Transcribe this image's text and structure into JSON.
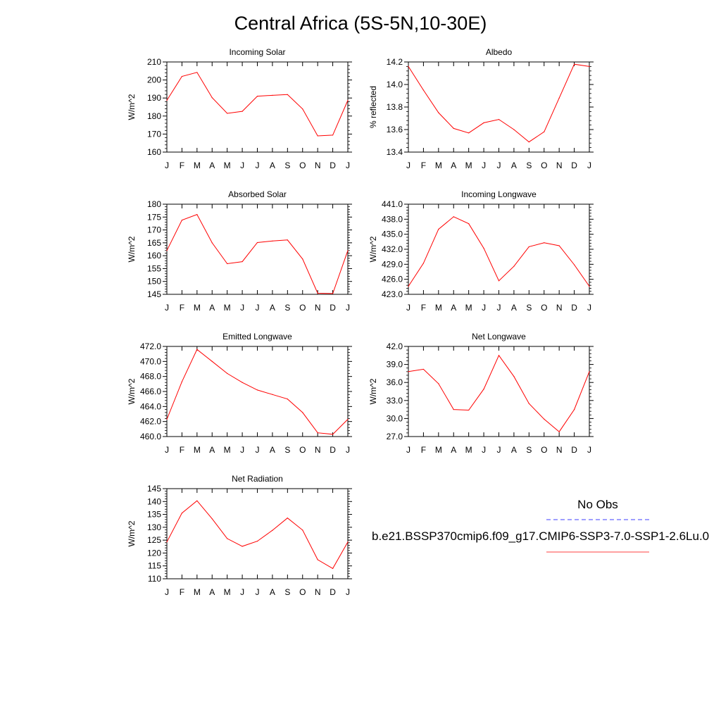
{
  "title": "Central Africa (5S-5N,10-30E)",
  "months": [
    "J",
    "F",
    "M",
    "A",
    "M",
    "J",
    "J",
    "A",
    "S",
    "O",
    "N",
    "D",
    "J"
  ],
  "colors": {
    "model": "#ff0000",
    "obs": "#0000ff",
    "axis": "#000000"
  },
  "legend": {
    "obs_label": "No Obs",
    "model_label": "b.e21.BSSP370cmip6.f09_g17.CMIP6-SSP3-7.0-SSP1-2.6Lu.0"
  },
  "chart_data": [
    {
      "type": "line",
      "title": "Incoming Solar",
      "ylabel": "W/m^2",
      "ylim": [
        160,
        210
      ],
      "yticks": [
        "160",
        "170",
        "180",
        "190",
        "200",
        "210"
      ],
      "x": [
        "J",
        "F",
        "M",
        "A",
        "M",
        "J",
        "J",
        "A",
        "S",
        "O",
        "N",
        "D",
        "J"
      ],
      "values": [
        188.7,
        202.0,
        204.2,
        190.2,
        181.5,
        182.6,
        191.0,
        191.5,
        191.9,
        183.9,
        169.0,
        169.4,
        188.7
      ]
    },
    {
      "type": "line",
      "title": "Albedo",
      "ylabel": "% reflected",
      "ylim": [
        13.4,
        14.2
      ],
      "yticks": [
        "13.4",
        "13.6",
        "13.8",
        "14.0",
        "14.2"
      ],
      "x": [
        "J",
        "F",
        "M",
        "A",
        "M",
        "J",
        "J",
        "A",
        "S",
        "O",
        "N",
        "D",
        "J"
      ],
      "values": [
        14.16,
        13.95,
        13.75,
        13.61,
        13.57,
        13.66,
        13.69,
        13.6,
        13.49,
        13.58,
        13.88,
        14.18,
        14.16
      ]
    },
    {
      "type": "line",
      "title": "Absorbed Solar",
      "ylabel": "W/m^2",
      "ylim": [
        145,
        180
      ],
      "yticks": [
        "145",
        "150",
        "155",
        "160",
        "165",
        "170",
        "175",
        "180"
      ],
      "x": [
        "J",
        "F",
        "M",
        "A",
        "M",
        "J",
        "J",
        "A",
        "S",
        "O",
        "N",
        "D",
        "J"
      ],
      "values": [
        162.0,
        173.8,
        176.0,
        165.0,
        156.9,
        157.7,
        165.1,
        165.7,
        166.1,
        158.7,
        145.4,
        145.3,
        162.0
      ]
    },
    {
      "type": "line",
      "title": "Incoming Longwave",
      "ylabel": "W/m^2",
      "ylim": [
        423.0,
        441.0
      ],
      "yticks": [
        "423.0",
        "426.0",
        "429.0",
        "432.0",
        "435.0",
        "438.0",
        "441.0"
      ],
      "x": [
        "J",
        "F",
        "M",
        "A",
        "M",
        "J",
        "J",
        "A",
        "S",
        "O",
        "N",
        "D",
        "J"
      ],
      "values": [
        424.6,
        429.2,
        436.0,
        438.5,
        437.1,
        432.2,
        425.7,
        428.6,
        432.5,
        433.3,
        432.7,
        428.9,
        424.6
      ]
    },
    {
      "type": "line",
      "title": "Emitted Longwave",
      "ylabel": "W/m^2",
      "ylim": [
        460.0,
        472.0
      ],
      "yticks": [
        "460.0",
        "462.0",
        "464.0",
        "466.0",
        "468.0",
        "470.0",
        "472.0"
      ],
      "x": [
        "J",
        "F",
        "M",
        "A",
        "M",
        "J",
        "J",
        "A",
        "S",
        "O",
        "N",
        "D",
        "J"
      ],
      "values": [
        462.3,
        467.3,
        471.6,
        470.0,
        468.4,
        467.2,
        466.2,
        465.6,
        465.0,
        463.2,
        460.5,
        460.3,
        462.3
      ]
    },
    {
      "type": "line",
      "title": "Net Longwave",
      "ylabel": "W/m^2",
      "ylim": [
        27.0,
        42.0
      ],
      "yticks": [
        "27.0",
        "30.0",
        "33.0",
        "36.0",
        "39.0",
        "42.0"
      ],
      "x": [
        "J",
        "F",
        "M",
        "A",
        "M",
        "J",
        "J",
        "A",
        "S",
        "O",
        "N",
        "D",
        "J"
      ],
      "values": [
        37.8,
        38.2,
        35.8,
        31.5,
        31.4,
        34.9,
        40.5,
        37.0,
        32.5,
        29.9,
        27.8,
        31.5,
        37.8
      ]
    },
    {
      "type": "line",
      "title": "Net Radiation",
      "ylabel": "W/m^2",
      "ylim": [
        110,
        145
      ],
      "yticks": [
        "110",
        "115",
        "120",
        "125",
        "130",
        "135",
        "140",
        "145"
      ],
      "x": [
        "J",
        "F",
        "M",
        "A",
        "M",
        "J",
        "J",
        "A",
        "S",
        "O",
        "N",
        "D",
        "J"
      ],
      "values": [
        124.3,
        135.5,
        140.3,
        133.3,
        125.6,
        122.6,
        124.6,
        128.8,
        133.6,
        128.9,
        117.4,
        114.0,
        124.3
      ]
    }
  ]
}
